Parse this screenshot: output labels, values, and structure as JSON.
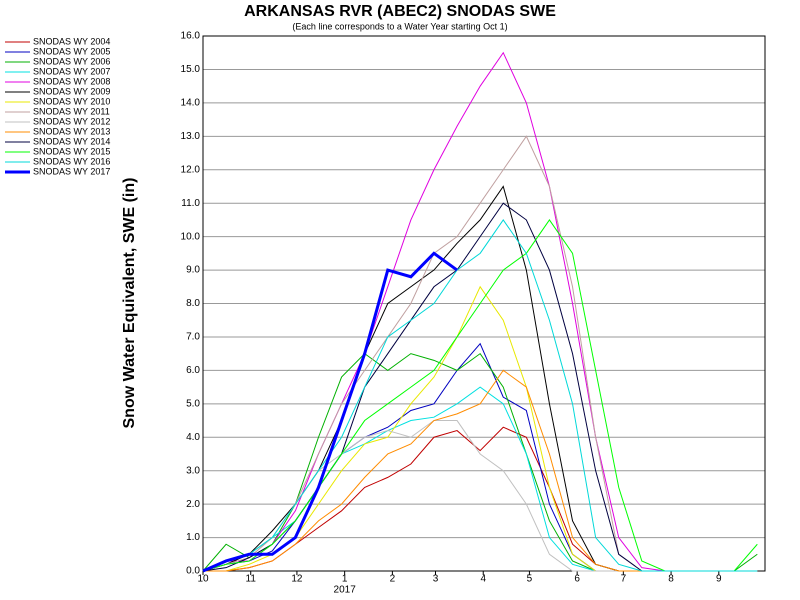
{
  "chart_data": {
    "type": "line",
    "title": "ARKANSAS RVR (ABEC2) SNODAS SWE",
    "subtitle": "(Each line corresponds to a Water Year starting Oct 1)",
    "y_label": "Snow Water Equivalent, SWE (in)",
    "year_label": "2017",
    "x": [
      0,
      15,
      30,
      45,
      60,
      75,
      90,
      105,
      120,
      135,
      150,
      165,
      180,
      195,
      210,
      225,
      240,
      255,
      270,
      285,
      300,
      315,
      330,
      345,
      360
    ],
    "xlim": [
      0,
      365
    ],
    "xticks": [
      {
        "value": 0,
        "label": "10"
      },
      {
        "value": 31,
        "label": "11"
      },
      {
        "value": 61,
        "label": "12"
      },
      {
        "value": 92,
        "label": "1"
      },
      {
        "value": 123,
        "label": "2"
      },
      {
        "value": 151,
        "label": "3"
      },
      {
        "value": 182,
        "label": "4"
      },
      {
        "value": 212,
        "label": "5"
      },
      {
        "value": 243,
        "label": "6"
      },
      {
        "value": 273,
        "label": "7"
      },
      {
        "value": 304,
        "label": "8"
      },
      {
        "value": 335,
        "label": "9"
      }
    ],
    "ylim": [
      0,
      16
    ],
    "yticks": [
      {
        "value": 0,
        "label": "0.0"
      },
      {
        "value": 1,
        "label": "1.0"
      },
      {
        "value": 2,
        "label": "2.0"
      },
      {
        "value": 3,
        "label": "3.0"
      },
      {
        "value": 4,
        "label": "4.0"
      },
      {
        "value": 5,
        "label": "5.0"
      },
      {
        "value": 6,
        "label": "6.0"
      },
      {
        "value": 7,
        "label": "7.0"
      },
      {
        "value": 8,
        "label": "8.0"
      },
      {
        "value": 9,
        "label": "9.0"
      },
      {
        "value": 10,
        "label": "10.0"
      },
      {
        "value": 11,
        "label": "11.0"
      },
      {
        "value": 12,
        "label": "12.0"
      },
      {
        "value": 13,
        "label": "13.0"
      },
      {
        "value": 14,
        "label": "14.0"
      },
      {
        "value": 15,
        "label": "15.0"
      },
      {
        "value": 16,
        "label": "16.0"
      }
    ],
    "grid": true,
    "legend": "top-left",
    "series": [
      {
        "name": "SNODAS WY 2004",
        "color": "#c00000",
        "values": [
          0,
          0,
          0.1,
          0.3,
          0.8,
          1.3,
          1.8,
          2.5,
          2.8,
          3.2,
          4.0,
          4.2,
          3.6,
          4.3,
          4.0,
          2.5,
          0.8,
          0.2,
          0,
          0,
          0,
          0,
          0,
          0,
          0
        ]
      },
      {
        "name": "SNODAS WY 2005",
        "color": "#0000c0",
        "values": [
          0,
          0.2,
          0.3,
          0.6,
          1.5,
          2.5,
          3.5,
          4.0,
          4.3,
          4.8,
          5.0,
          6.0,
          6.8,
          5.2,
          4.8,
          2.0,
          0.5,
          0,
          0,
          0,
          0,
          0,
          0,
          0,
          0
        ]
      },
      {
        "name": "SNODAS WY 2006",
        "color": "#00b000",
        "values": [
          0,
          0.8,
          0.4,
          0.8,
          2.0,
          4.0,
          5.8,
          6.5,
          6.0,
          6.5,
          6.3,
          6.0,
          6.5,
          5.5,
          3.5,
          1.5,
          0.3,
          0,
          0,
          0,
          0,
          0,
          0,
          0,
          0.5
        ]
      },
      {
        "name": "SNODAS WY 2007",
        "color": "#00e0e0",
        "values": [
          0,
          0.2,
          0.5,
          1.0,
          1.5,
          2.5,
          3.5,
          3.8,
          4.2,
          4.5,
          4.6,
          5.0,
          5.5,
          5.0,
          3.5,
          1.0,
          0.2,
          0,
          0,
          0,
          0,
          0,
          0,
          0,
          0
        ]
      },
      {
        "name": "SNODAS WY 2008",
        "color": "#e000e0",
        "values": [
          0,
          0.3,
          0.3,
          0.8,
          1.8,
          3.5,
          5.0,
          6.5,
          8.5,
          10.5,
          12.0,
          13.3,
          14.5,
          15.5,
          14.0,
          11.5,
          8.0,
          4.0,
          1.0,
          0.1,
          0,
          0,
          0,
          0,
          0
        ]
      },
      {
        "name": "SNODAS WY 2009",
        "color": "#000000",
        "values": [
          0,
          0.2,
          0.5,
          1.2,
          2.0,
          3.0,
          4.5,
          6.5,
          8.0,
          8.5,
          9.0,
          9.8,
          10.5,
          11.5,
          9.0,
          5.0,
          1.5,
          0.2,
          0,
          0,
          0,
          0,
          0,
          0,
          0
        ]
      },
      {
        "name": "SNODAS WY 2010",
        "color": "#e8e800",
        "values": [
          0,
          0,
          0.2,
          0.5,
          1.0,
          2.0,
          3.0,
          3.8,
          4.0,
          5.0,
          5.8,
          7.0,
          8.5,
          7.5,
          5.5,
          2.5,
          0.5,
          0,
          0,
          0,
          0,
          0,
          0,
          0,
          0
        ]
      },
      {
        "name": "SNODAS WY 2011",
        "color": "#c0a0a0",
        "values": [
          0,
          0.2,
          0.4,
          1.0,
          2.0,
          3.5,
          5.0,
          6.0,
          7.0,
          8.0,
          9.5,
          10.0,
          11.0,
          12.0,
          13.0,
          11.5,
          8.5,
          4.0,
          0.5,
          0,
          0,
          0,
          0,
          0,
          0
        ]
      },
      {
        "name": "SNODAS WY 2012",
        "color": "#c0c0c0",
        "values": [
          0,
          0.3,
          0.5,
          1.0,
          2.0,
          3.0,
          3.5,
          4.0,
          4.2,
          4.0,
          4.5,
          4.5,
          3.5,
          3.0,
          2.0,
          0.5,
          0,
          0,
          0,
          0,
          0,
          0,
          0,
          0,
          0
        ]
      },
      {
        "name": "SNODAS WY 2013",
        "color": "#ff8c00",
        "values": [
          0,
          0,
          0.1,
          0.3,
          0.8,
          1.5,
          2.0,
          2.8,
          3.5,
          3.8,
          4.5,
          4.7,
          5.0,
          6.0,
          5.5,
          3.5,
          1.0,
          0.2,
          0,
          0,
          0,
          0,
          0,
          0,
          0
        ]
      },
      {
        "name": "SNODAS WY 2014",
        "color": "#000040",
        "values": [
          0,
          0.1,
          0.4,
          0.8,
          1.5,
          2.5,
          3.5,
          5.5,
          6.5,
          7.5,
          8.5,
          9.0,
          10.0,
          11.0,
          10.5,
          9.0,
          6.5,
          3.0,
          0.5,
          0,
          0,
          0,
          0,
          0,
          0
        ]
      },
      {
        "name": "SNODAS WY 2015",
        "color": "#00ff00",
        "values": [
          0,
          0.2,
          0.3,
          0.8,
          1.5,
          2.5,
          3.5,
          4.5,
          5.0,
          5.5,
          6.0,
          7.0,
          8.0,
          9.0,
          9.5,
          10.5,
          9.5,
          6.0,
          2.5,
          0.3,
          0,
          0,
          0,
          0,
          0.8
        ]
      },
      {
        "name": "SNODAS WY 2016",
        "color": "#00d8d8",
        "values": [
          0,
          0.3,
          0.5,
          1.0,
          2.0,
          3.0,
          4.0,
          5.5,
          7.0,
          7.5,
          8.0,
          9.0,
          9.5,
          10.5,
          9.5,
          7.5,
          5.0,
          1.0,
          0.2,
          0,
          0,
          0,
          0,
          0,
          0
        ]
      },
      {
        "name": "SNODAS WY 2017",
        "color": "#0000ff",
        "line_width": 3,
        "values": [
          0,
          0.3,
          0.5,
          0.5,
          1.0,
          2.5,
          4.5,
          6.5,
          9.0,
          8.8,
          9.5,
          9.0,
          null,
          null,
          null,
          null,
          null,
          null,
          null,
          null,
          null,
          null,
          null,
          null,
          null
        ]
      }
    ]
  }
}
